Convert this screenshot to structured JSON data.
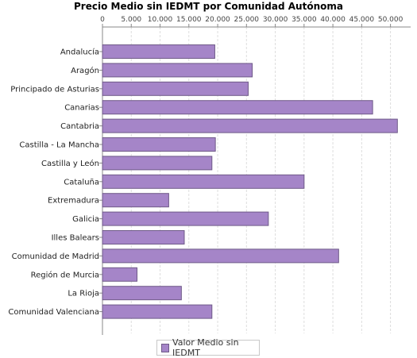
{
  "chart_data": {
    "type": "bar",
    "orientation": "horizontal",
    "title": "Precio Medio sin IEDMT por Comunidad Autónoma",
    "categories": [
      "Andalucía",
      "Aragón",
      "Principado de Asturias",
      "Canarias",
      "Cantabria",
      "Castilla - La Mancha",
      "Castilla y León",
      "Cataluña",
      "Extremadura",
      "Galicia",
      "Illes Balears",
      "Comunidad de Madrid",
      "Región de Murcia",
      "La Rioja",
      "Comunidad Valenciana"
    ],
    "series": [
      {
        "name": "Valor Medio sin IEDMT",
        "values": [
          19500,
          26000,
          25300,
          46900,
          51200,
          19600,
          19000,
          35000,
          11500,
          28800,
          14200,
          41000,
          6000,
          13700,
          19000
        ]
      }
    ],
    "xlim": [
      0,
      53500
    ],
    "ticks": [
      "0",
      "5.000",
      "10.000",
      "15.000",
      "20.000",
      "25.000",
      "30.000",
      "35.000",
      "40.000",
      "45.000",
      "50.000"
    ],
    "grid": true,
    "axis_position": "top",
    "legend": "bottom",
    "colors": {
      "bar": "#a585c8",
      "bar_border": "#6f5a88",
      "grid": "#dddddd",
      "axis": "#888888"
    }
  }
}
